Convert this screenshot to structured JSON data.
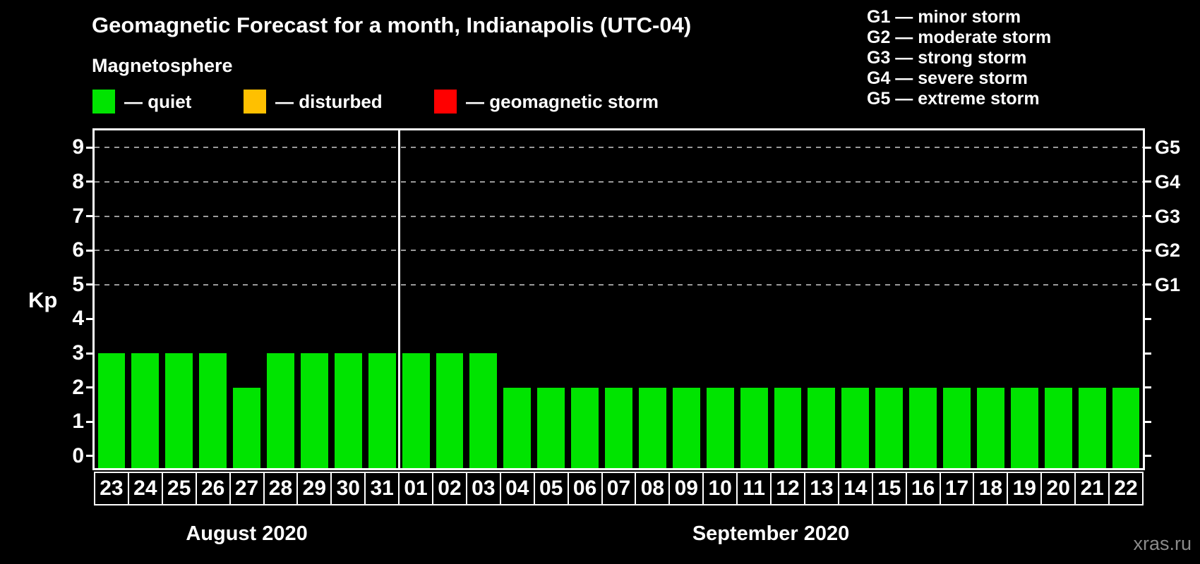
{
  "title": "Geomagnetic Forecast for a month, Indianapolis (UTC-04)",
  "subtitle": "Magnetosphere",
  "legend": {
    "items": [
      {
        "name": "quiet",
        "label": "— quiet",
        "color": "#00e400"
      },
      {
        "name": "disturbed",
        "label": "— disturbed",
        "color": "#ffc000"
      },
      {
        "name": "geomagnetic-storm",
        "label": "— geomagnetic storm",
        "color": "#ff0000"
      }
    ]
  },
  "g_scale_legend": {
    "lines": [
      "G1 — minor storm",
      "G2 — moderate storm",
      "G3 — strong storm",
      "G4 — severe storm",
      "G5 — extreme storm"
    ]
  },
  "watermark": "xras.ru",
  "chart_data": {
    "type": "bar",
    "title": "Geomagnetic Forecast for a month, Indianapolis (UTC-04)",
    "ylabel": "Kp",
    "ylim": [
      -0.35,
      9.5
    ],
    "y_ticks": [
      0,
      1,
      2,
      3,
      4,
      5,
      6,
      7,
      8,
      9
    ],
    "gridlines_at": [
      5,
      6,
      7,
      8,
      9
    ],
    "grid": "dashed, only at storm levels G1–G5",
    "legend_position": "top",
    "bar_color": "#00e400",
    "right_axis": [
      {
        "label": "G5",
        "value": 9
      },
      {
        "label": "G4",
        "value": 8
      },
      {
        "label": "G3",
        "value": 7
      },
      {
        "label": "G2",
        "value": 6
      },
      {
        "label": "G1",
        "value": 5
      }
    ],
    "groups": [
      {
        "label": "August 2020",
        "categories": [
          "23",
          "24",
          "25",
          "26",
          "27",
          "28",
          "29",
          "30",
          "31"
        ],
        "values": [
          3,
          3,
          3,
          3,
          2,
          3,
          3,
          3,
          3
        ]
      },
      {
        "label": "September 2020",
        "categories": [
          "01",
          "02",
          "03",
          "04",
          "05",
          "06",
          "07",
          "08",
          "09",
          "10",
          "11",
          "12",
          "13",
          "14",
          "15",
          "16",
          "17",
          "18",
          "19",
          "20",
          "21",
          "22"
        ],
        "values": [
          3,
          3,
          3,
          2,
          2,
          2,
          2,
          2,
          2,
          2,
          2,
          2,
          2,
          2,
          2,
          2,
          2,
          2,
          2,
          2,
          2,
          2
        ]
      }
    ]
  }
}
